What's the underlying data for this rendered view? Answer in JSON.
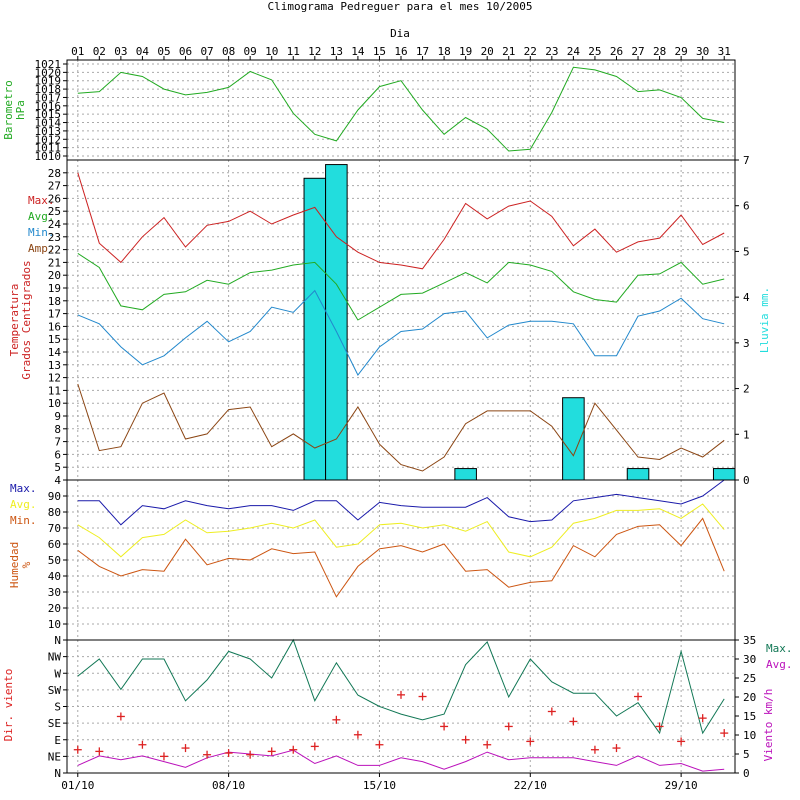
{
  "title": "Climograma Pedreguer para el mes 10/2005",
  "x_axis": {
    "top_label": "Dia",
    "days": [
      "01",
      "02",
      "03",
      "04",
      "05",
      "06",
      "07",
      "08",
      "09",
      "10",
      "11",
      "12",
      "13",
      "14",
      "15",
      "16",
      "17",
      "18",
      "19",
      "20",
      "21",
      "22",
      "23",
      "24",
      "25",
      "26",
      "27",
      "28",
      "29",
      "30",
      "31"
    ],
    "date_labels": [
      {
        "day": 1,
        "label": "01/10"
      },
      {
        "day": 8,
        "label": "08/10"
      },
      {
        "day": 15,
        "label": "15/10"
      },
      {
        "day": 22,
        "label": "22/10"
      },
      {
        "day": 29,
        "label": "29/10"
      }
    ]
  },
  "colors": {
    "frame": "#000000",
    "grid": "#aaaaaa",
    "baro": "#22aa22",
    "t_max": "#cc2222",
    "t_avg": "#22aa22",
    "t_min": "#2288cc",
    "t_amp": "#8b4513",
    "rain": "#22dddd",
    "h_max": "#1a1aaa",
    "h_avg": "#eeee22",
    "h_min": "#cc5511",
    "wind_dir": "#dd2222",
    "wind_max": "#117755",
    "wind_avg": "#bb11bb"
  },
  "chart_data": [
    {
      "type": "line",
      "panel": "barometer",
      "ylabel_lines": [
        "Barometro",
        "hPa"
      ],
      "ylim": [
        1010,
        1021
      ],
      "yticks": [
        "1010",
        "1011",
        "1012",
        "1013",
        "1014",
        "1015",
        "1016",
        "1017",
        "1018",
        "1019",
        "1020",
        "1021"
      ],
      "series": [
        {
          "values": [
            1017.5,
            1017.7,
            1020.0,
            1019.5,
            1018.0,
            1017.3,
            1017.6,
            1018.2,
            1020.1,
            1019.1,
            1015.1,
            1012.6,
            1011.8,
            1015.5,
            1018.3,
            1019.0,
            1015.5,
            1012.6,
            1014.6,
            1013.2,
            1010.6,
            1010.8,
            1015.2,
            1020.6,
            1020.3,
            1019.5,
            1017.7,
            1017.9,
            1017.0,
            1014.5,
            1014.0
          ]
        }
      ]
    },
    {
      "type": "line+bar",
      "panel": "temperature",
      "ylabel_lines": [
        "Temperatura",
        "Grados Centigrados"
      ],
      "ylim": [
        4,
        29
      ],
      "yticks": [
        "4",
        "5",
        "6",
        "7",
        "8",
        "9",
        "10",
        "11",
        "12",
        "13",
        "14",
        "15",
        "16",
        "17",
        "18",
        "19",
        "20",
        "21",
        "22",
        "23",
        "24",
        "25",
        "26",
        "27",
        "28"
      ],
      "legend": [
        "Max.",
        "Avg.",
        "Min.",
        "Amp."
      ],
      "series": [
        {
          "name": "Max.",
          "values": [
            28.0,
            22.5,
            21.0,
            23.0,
            24.5,
            22.2,
            23.9,
            24.2,
            25.0,
            24.0,
            24.7,
            25.3,
            23.0,
            21.8,
            21.0,
            20.8,
            20.5,
            22.8,
            25.6,
            24.4,
            25.4,
            25.8,
            24.6,
            22.3,
            23.6,
            21.8,
            22.6,
            22.9,
            24.7,
            22.4,
            23.3
          ]
        },
        {
          "name": "Avg.",
          "values": [
            21.7,
            20.6,
            17.6,
            17.3,
            18.5,
            18.7,
            19.6,
            19.3,
            20.2,
            20.4,
            20.8,
            21.0,
            19.3,
            16.5,
            17.5,
            18.5,
            18.6,
            19.4,
            20.2,
            19.4,
            21.0,
            20.8,
            20.3,
            18.7,
            18.1,
            17.9,
            20.0,
            20.1,
            21.0,
            19.3,
            19.7
          ]
        },
        {
          "name": "Min.",
          "values": [
            16.9,
            16.2,
            14.4,
            13.0,
            13.7,
            15.1,
            16.4,
            14.8,
            15.6,
            17.5,
            17.1,
            18.8,
            15.6,
            12.2,
            14.4,
            15.6,
            15.8,
            17.0,
            17.2,
            15.1,
            16.1,
            16.4,
            16.4,
            16.2,
            13.7,
            13.7,
            16.8,
            17.2,
            18.2,
            16.6,
            16.2
          ]
        },
        {
          "name": "Amp.",
          "values": [
            11.5,
            6.3,
            6.6,
            10.0,
            10.8,
            7.2,
            7.6,
            9.5,
            9.7,
            6.6,
            7.6,
            6.5,
            7.2,
            9.7,
            6.8,
            5.2,
            4.7,
            5.8,
            8.4,
            9.4,
            9.4,
            9.4,
            8.2,
            5.9,
            10.0,
            7.9,
            5.8,
            5.6,
            6.5,
            5.8,
            7.1
          ]
        }
      ],
      "rain": {
        "ylabel": "Lluvia mm.",
        "ylim": [
          0,
          7
        ],
        "yticks": [
          "0",
          "1",
          "2",
          "3",
          "4",
          "5",
          "6",
          "7"
        ],
        "values": [
          0,
          0,
          0,
          0,
          0,
          0,
          0,
          0,
          0,
          0,
          0,
          6.6,
          6.9,
          0,
          0,
          0,
          0,
          0,
          0.25,
          0,
          0,
          0,
          0,
          1.8,
          0,
          0,
          0.25,
          0,
          0,
          0,
          0.25
        ]
      }
    },
    {
      "type": "line",
      "panel": "humidity",
      "ylabel_lines": [
        "Humedad",
        "%"
      ],
      "ylim": [
        0,
        100
      ],
      "yticks": [
        "10",
        "20",
        "30",
        "40",
        "50",
        "60",
        "70",
        "80",
        "90"
      ],
      "legend": [
        "Max.",
        "Avg.",
        "Min."
      ],
      "series": [
        {
          "name": "Max.",
          "values": [
            87,
            87,
            72,
            84,
            82,
            87,
            84,
            82,
            84,
            84,
            81,
            87,
            87,
            75,
            86,
            84,
            83,
            83,
            83,
            89,
            77,
            74,
            75,
            87,
            89,
            91,
            89,
            87,
            85,
            90,
            100
          ]
        },
        {
          "name": "Avg.",
          "values": [
            72,
            64,
            52,
            64,
            66,
            75,
            67,
            68,
            70,
            73,
            70,
            75,
            58,
            60,
            72,
            73,
            70,
            72,
            68,
            74,
            55,
            52,
            58,
            73,
            76,
            81,
            81,
            82,
            76,
            85,
            69
          ]
        },
        {
          "name": "Min.",
          "values": [
            56,
            46,
            40,
            44,
            43,
            63,
            47,
            51,
            50,
            57,
            54,
            55,
            27,
            46,
            57,
            59,
            55,
            60,
            43,
            44,
            33,
            36,
            37,
            59,
            52,
            66,
            71,
            72,
            59,
            76,
            43
          ]
        }
      ]
    },
    {
      "type": "line+scatter",
      "panel": "wind",
      "ylabel_left": "Dir. viento",
      "direction_ticks": [
        "N",
        "NE",
        "E",
        "SE",
        "S",
        "SW",
        "W",
        "NW",
        "N"
      ],
      "direction_values": [
        1.4,
        1.3,
        3.4,
        1.7,
        1.0,
        1.5,
        1.1,
        1.2,
        1.1,
        1.3,
        1.4,
        1.6,
        3.2,
        2.3,
        1.7,
        4.7,
        4.6,
        2.8,
        2.0,
        1.7,
        2.8,
        1.9,
        3.7,
        3.1,
        1.4,
        1.5,
        4.6,
        2.8,
        1.9,
        3.3,
        2.4
      ],
      "ylabel_right": "Viento km/h",
      "ylim": [
        0,
        35
      ],
      "yticks": [
        "0",
        "5",
        "10",
        "15",
        "20",
        "25",
        "30",
        "35"
      ],
      "legend": [
        "Max.",
        "Avg."
      ],
      "series": [
        {
          "name": "Max.",
          "values": [
            25.5,
            30.0,
            22.0,
            30.0,
            30.0,
            19.0,
            24.5,
            32.0,
            30.0,
            25.0,
            35.0,
            19.0,
            29.0,
            20.5,
            17.5,
            15.5,
            14.0,
            15.5,
            28.5,
            34.5,
            20.0,
            30.0,
            24.0,
            21.0,
            21.0,
            15.0,
            18.5,
            10.5,
            32.0,
            10.5,
            19.5
          ]
        },
        {
          "name": "Avg.",
          "values": [
            2.0,
            4.5,
            3.5,
            4.5,
            3.0,
            1.5,
            4.0,
            5.5,
            5.0,
            4.5,
            6.0,
            2.5,
            4.5,
            2.0,
            2.0,
            4.0,
            3.0,
            1.0,
            3.0,
            5.5,
            3.5,
            4.0,
            4.0,
            4.0,
            3.0,
            2.0,
            4.5,
            2.0,
            2.5,
            0.5,
            1.0
          ]
        }
      ]
    }
  ]
}
